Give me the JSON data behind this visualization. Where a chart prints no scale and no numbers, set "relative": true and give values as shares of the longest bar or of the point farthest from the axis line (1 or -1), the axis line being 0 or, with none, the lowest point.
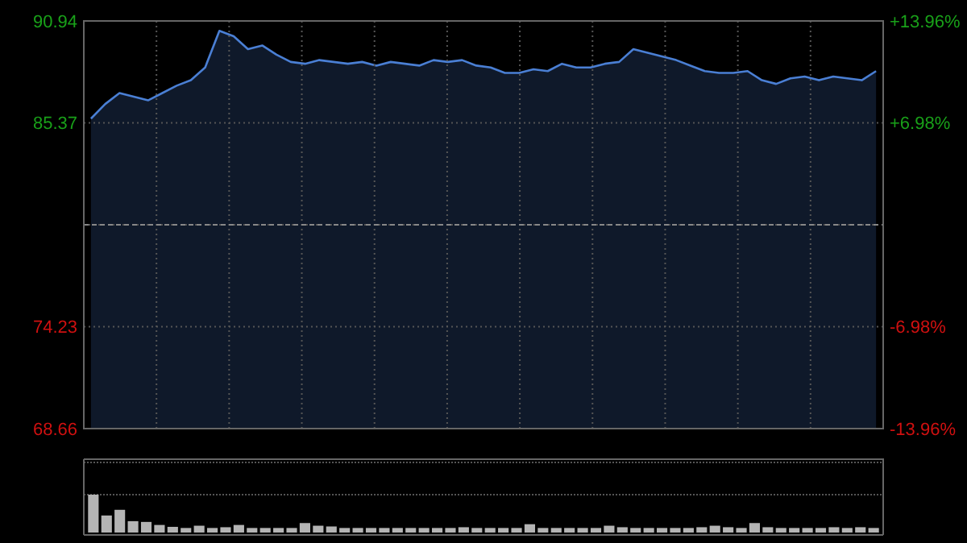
{
  "chart_data": [
    {
      "type": "area",
      "categories": [
        null,
        null,
        null,
        null,
        null,
        null,
        null,
        null,
        null,
        null,
        null,
        null,
        null,
        null,
        null,
        null,
        null,
        null,
        null,
        null,
        null,
        null,
        null,
        null,
        null,
        null,
        null,
        null,
        null,
        null,
        null,
        null,
        null,
        null,
        null,
        null,
        null,
        null,
        null,
        null,
        null,
        null,
        null,
        null,
        null,
        null,
        null,
        null,
        null,
        null,
        null,
        null,
        null,
        null,
        null,
        null
      ],
      "series": [
        {
          "color": "#4a7fd4",
          "values": [
            85.6,
            86.4,
            87.0,
            86.8,
            86.6,
            87.0,
            87.4,
            87.7,
            88.4,
            90.4,
            90.1,
            89.4,
            89.6,
            89.1,
            88.7,
            88.6,
            88.8,
            88.7,
            88.6,
            88.7,
            88.5,
            88.7,
            88.6,
            88.5,
            88.8,
            88.7,
            88.8,
            88.5,
            88.4,
            88.1,
            88.1,
            88.3,
            88.2,
            88.6,
            88.4,
            88.4,
            88.6,
            88.7,
            89.4,
            89.2,
            89.0,
            88.8,
            88.5,
            88.2,
            88.1,
            88.1,
            88.2,
            87.7,
            87.5,
            87.8,
            87.9,
            87.7,
            87.9,
            87.8,
            87.7,
            88.2
          ]
        }
      ],
      "ylim": [
        68.66,
        90.94
      ],
      "yticks": [
        68.66,
        74.23,
        {
          "value": 79.8,
          "label": null
        },
        85.37,
        90.94
      ],
      "y2lim": [
        -13.96,
        13.96
      ],
      "y2ticks": [
        {
          "value": -13.96,
          "label": "-13.96%"
        },
        {
          "value": -6.98,
          "label": "-6.98%"
        },
        {
          "value": 6.98,
          "label": "+6.98%"
        },
        {
          "value": 13.96,
          "label": "+13.96%"
        }
      ],
      "ref_lines": [
        {
          "axis": "y",
          "value": 79.8
        }
      ],
      "grid": true,
      "tick_labels": "y"
    },
    {
      "type": "bar",
      "relative": true,
      "grid": true,
      "categories": [
        null,
        null,
        null,
        null,
        null,
        null,
        null,
        null,
        null,
        null,
        null,
        null,
        null,
        null,
        null,
        null,
        null,
        null,
        null,
        null,
        null,
        null,
        null,
        null,
        null,
        null,
        null,
        null,
        null,
        null,
        null,
        null,
        null,
        null,
        null,
        null,
        null,
        null,
        null,
        null,
        null,
        null,
        null,
        null,
        null,
        null,
        null,
        null,
        null,
        null,
        null,
        null,
        null,
        null,
        null,
        null,
        null,
        null,
        null,
        null
      ],
      "series": [
        {
          "color": "#b4b4b4",
          "values": [
            1,
            0.45,
            0.6,
            0.3,
            0.28,
            0.2,
            0.15,
            0.12,
            0.18,
            0.12,
            0.14,
            0.2,
            0.12,
            0.12,
            0.12,
            0.12,
            0.25,
            0.18,
            0.16,
            0.12,
            0.12,
            0.12,
            0.12,
            0.12,
            0.12,
            0.12,
            0.12,
            0.12,
            0.14,
            0.12,
            0.12,
            0.12,
            0.12,
            0.22,
            0.12,
            0.12,
            0.12,
            0.12,
            0.12,
            0.18,
            0.14,
            0.12,
            0.12,
            0.12,
            0.12,
            0.12,
            0.14,
            0.18,
            0.14,
            0.12,
            0.25,
            0.14,
            0.12,
            0.12,
            0.12,
            0.12,
            0.14,
            0.12,
            0.14,
            0.12
          ]
        }
      ]
    }
  ]
}
